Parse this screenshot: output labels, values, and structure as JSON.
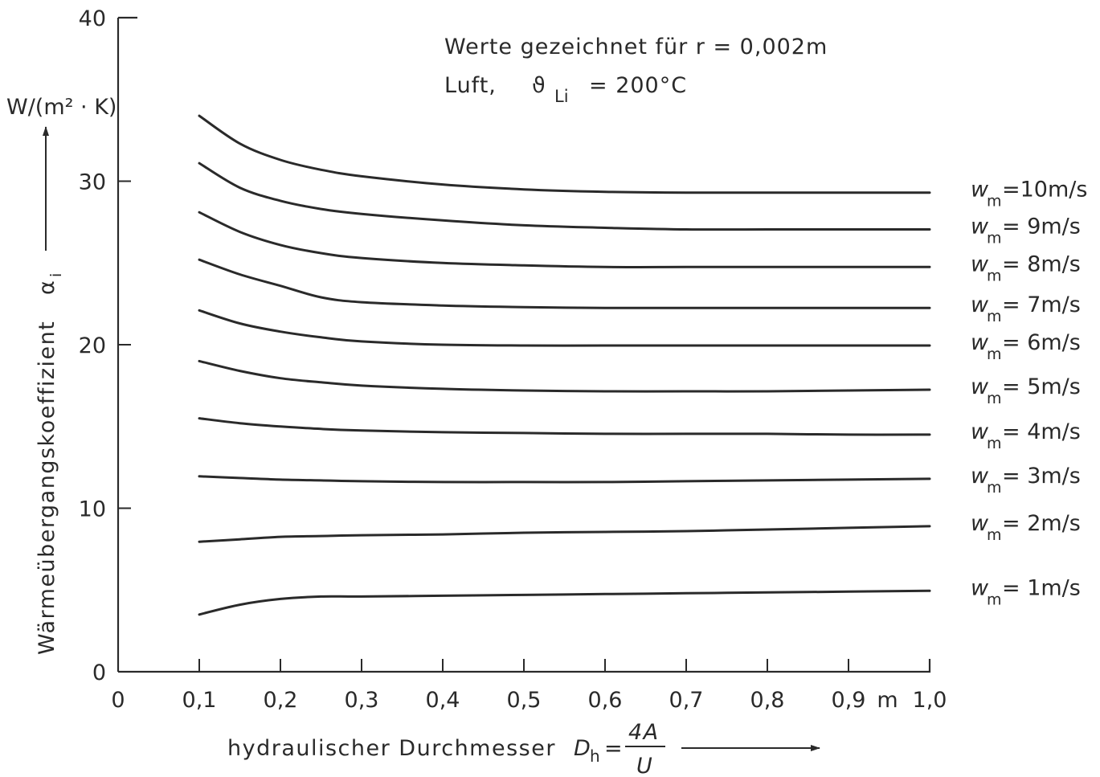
{
  "chart_data": {
    "type": "line",
    "annotation_line1": "Werte gezeichnet für r = 0,002m",
    "annotation_line2_prefix": "Luft,",
    "annotation_theta": "ϑ",
    "annotation_theta_sub": "Li",
    "annotation_line2_value": "= 200°C",
    "ylabel_unit": "W/(m² · K)",
    "ylabel": "Wärmeübergangskoeffizient",
    "ylabel_symbol": "α",
    "ylabel_symbol_sub": "i",
    "xlabel_text": "hydraulischer Durchmesser",
    "xlabel_symbol": "D",
    "xlabel_symbol_sub": "h",
    "xlabel_eq": "=",
    "xlabel_frac_num": "4A",
    "xlabel_frac_den": "U",
    "xlim": [
      0,
      1.0
    ],
    "ylim": [
      0,
      40
    ],
    "grid": false,
    "xticks": [
      "0",
      "0,1",
      "0,2",
      "0,3",
      "0,4",
      "0,5",
      "0,6",
      "0,7",
      "0,8",
      "0,9",
      "1,0"
    ],
    "xtick_values": [
      0,
      0.1,
      0.2,
      0.3,
      0.4,
      0.5,
      0.6,
      0.7,
      0.8,
      0.9,
      1.0
    ],
    "x_unit_label": "m",
    "yticks": [
      "0",
      "10",
      "20",
      "30",
      "40"
    ],
    "ytick_values": [
      0,
      10,
      20,
      30,
      40
    ],
    "x": [
      0.1,
      0.15,
      0.2,
      0.25,
      0.3,
      0.4,
      0.5,
      0.6,
      0.7,
      0.8,
      0.9,
      1.0
    ],
    "series": [
      {
        "name": "w_m = 10m/s",
        "legend_prefix": "w",
        "legend_sub": "m",
        "legend_suffix": "=10m/s",
        "values": [
          34.0,
          32.3,
          31.3,
          30.7,
          30.3,
          29.8,
          29.5,
          29.35,
          29.3,
          29.3,
          29.3,
          29.3
        ]
      },
      {
        "name": "w_m = 9m/s",
        "legend_prefix": "w",
        "legend_sub": "m",
        "legend_suffix": "= 9m/s",
        "values": [
          31.1,
          29.6,
          28.8,
          28.3,
          28.0,
          27.6,
          27.3,
          27.15,
          27.05,
          27.05,
          27.05,
          27.05
        ]
      },
      {
        "name": "w_m = 8m/s",
        "legend_prefix": "w",
        "legend_sub": "m",
        "legend_suffix": "= 8m/s",
        "values": [
          28.1,
          26.9,
          26.1,
          25.6,
          25.3,
          25.0,
          24.85,
          24.75,
          24.75,
          24.75,
          24.75,
          24.75
        ]
      },
      {
        "name": "w_m = 7m/s",
        "legend_prefix": "w",
        "legend_sub": "m",
        "legend_suffix": "= 7m/s",
        "values": [
          25.2,
          24.3,
          23.6,
          22.9,
          22.6,
          22.4,
          22.3,
          22.25,
          22.25,
          22.25,
          22.25,
          22.25
        ]
      },
      {
        "name": "w_m = 6m/s",
        "legend_prefix": "w",
        "legend_sub": "m",
        "legend_suffix": "= 6m/s",
        "values": [
          22.1,
          21.3,
          20.8,
          20.45,
          20.2,
          20.0,
          19.95,
          19.95,
          19.95,
          19.95,
          19.95,
          19.95
        ]
      },
      {
        "name": "w_m = 5m/s",
        "legend_prefix": "w",
        "legend_sub": "m",
        "legend_suffix": "= 5m/s",
        "values": [
          19.0,
          18.4,
          17.95,
          17.7,
          17.5,
          17.3,
          17.2,
          17.15,
          17.15,
          17.15,
          17.2,
          17.25
        ]
      },
      {
        "name": "w_m = 4m/s",
        "legend_prefix": "w",
        "legend_sub": "m",
        "legend_suffix": "= 4m/s",
        "values": [
          15.5,
          15.2,
          15.0,
          14.85,
          14.75,
          14.65,
          14.6,
          14.55,
          14.55,
          14.55,
          14.5,
          14.5
        ]
      },
      {
        "name": "w_m = 3m/s",
        "legend_prefix": "w",
        "legend_sub": "m",
        "legend_suffix": "= 3m/s",
        "values": [
          11.95,
          11.85,
          11.75,
          11.7,
          11.65,
          11.6,
          11.6,
          11.6,
          11.65,
          11.7,
          11.75,
          11.8
        ]
      },
      {
        "name": "w_m = 2m/s",
        "legend_prefix": "w",
        "legend_sub": "m",
        "legend_suffix": "= 2m/s",
        "values": [
          7.95,
          8.1,
          8.25,
          8.3,
          8.35,
          8.4,
          8.5,
          8.55,
          8.6,
          8.7,
          8.8,
          8.9
        ]
      },
      {
        "name": "w_m = 1m/s",
        "legend_prefix": "w",
        "legend_sub": "m",
        "legend_suffix": "= 1m/s",
        "values": [
          3.5,
          4.1,
          4.45,
          4.6,
          4.6,
          4.65,
          4.7,
          4.75,
          4.8,
          4.85,
          4.9,
          4.95
        ]
      }
    ],
    "colors": {
      "ink": "#2a2a2a",
      "background": "#ffffff"
    }
  }
}
